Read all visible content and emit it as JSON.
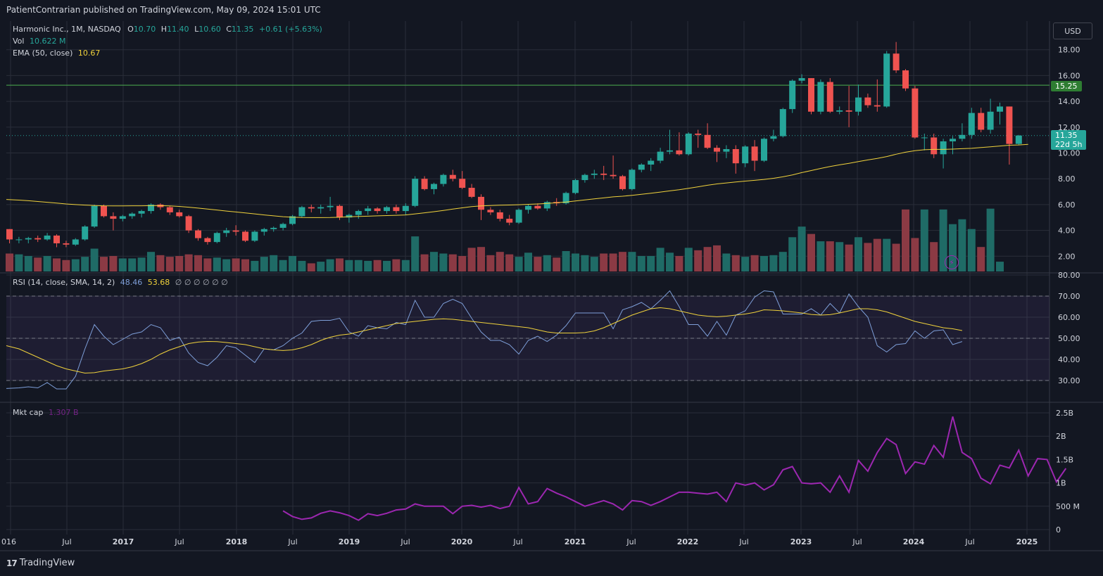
{
  "header": {
    "published": "PatientContrarian published on TradingView.com, May 09, 2024 15:01 UTC"
  },
  "legend": {
    "symbol": "Harmonic Inc., 1M, NASDAQ",
    "o_label": "O",
    "o_value": "10.70",
    "h_label": "H",
    "h_value": "11.40",
    "l_label": "L",
    "l_value": "10.60",
    "c_label": "C",
    "c_value": "11.35",
    "change": "+0.61 (+5.63%)",
    "vol_label": "Vol",
    "vol_value": "10.622 M",
    "ema_label": "EMA (50, close)",
    "ema_value": "10.67",
    "rsi_label": "RSI (14, close, SMA, 14, 2)",
    "rsi_value": "48.46",
    "rsi_sma_value": "53.68",
    "rsi_extra": "∅ ∅ ∅ ∅ ∅ ∅",
    "mktcap_label": "Mkt cap",
    "mktcap_value": "1.307 B"
  },
  "toolbar": {
    "currency": "USD"
  },
  "price_tags": {
    "level": "15.25",
    "last": "11.35",
    "countdown": "22d 5h"
  },
  "footer": {
    "brand": "TradingView",
    "brand_mark": "17"
  },
  "colors": {
    "background": "#131722",
    "up": "#26a69a",
    "down": "#ef5350",
    "vol_up": "#1f6b66",
    "vol_down": "#8b3a44",
    "ema": "#f0d23c",
    "rsi": "#7e9fd9",
    "rsi_sma": "#f0d23c",
    "mktcap": "#9c27b0",
    "level_line": "#4caf50",
    "grid": "#2a2e39"
  },
  "chart_data": {
    "type": "candlestick",
    "interval": "1M",
    "first_period": "2015-12",
    "price_axis": {
      "min": 0.6,
      "max": 19.4,
      "ticks": [
        "2.00",
        "4.00",
        "6.00",
        "8.00",
        "10.00",
        "12.00",
        "14.00",
        "16.00",
        "18.00"
      ]
    },
    "x_ticks": [
      "016",
      "Jul",
      "2017",
      "Jul",
      "2018",
      "Jul",
      "2019",
      "Jul",
      "2020",
      "Jul",
      "2021",
      "Jul",
      "2022",
      "Jul",
      "2023",
      "Jul",
      "2024",
      "Jul",
      "2025"
    ],
    "horizontal_level": 15.25,
    "candles": [
      [
        4.1,
        4.1,
        3.0,
        3.3
      ],
      [
        3.3,
        3.5,
        3.0,
        3.3
      ],
      [
        3.3,
        3.5,
        3.0,
        3.4
      ],
      [
        3.4,
        3.6,
        3.1,
        3.3
      ],
      [
        3.3,
        3.8,
        3.2,
        3.6
      ],
      [
        3.6,
        3.7,
        2.7,
        3.0
      ],
      [
        3.0,
        3.2,
        2.7,
        2.9
      ],
      [
        2.9,
        3.4,
        2.8,
        3.3
      ],
      [
        3.3,
        4.4,
        3.2,
        4.3
      ],
      [
        4.3,
        6.0,
        4.2,
        5.9
      ],
      [
        5.9,
        6.0,
        5.0,
        5.1
      ],
      [
        5.1,
        5.4,
        4.0,
        4.9
      ],
      [
        4.9,
        5.2,
        4.7,
        5.1
      ],
      [
        5.1,
        5.4,
        4.9,
        5.3
      ],
      [
        5.3,
        5.6,
        5.0,
        5.5
      ],
      [
        5.5,
        6.1,
        5.3,
        6.0
      ],
      [
        6.0,
        6.1,
        5.6,
        5.8
      ],
      [
        5.8,
        5.9,
        5.2,
        5.4
      ],
      [
        5.4,
        5.6,
        5.0,
        5.1
      ],
      [
        5.1,
        5.2,
        3.8,
        4.0
      ],
      [
        4.0,
        4.1,
        3.2,
        3.4
      ],
      [
        3.4,
        3.5,
        2.9,
        3.1
      ],
      [
        3.1,
        3.9,
        3.0,
        3.8
      ],
      [
        3.8,
        4.2,
        3.5,
        4.0
      ],
      [
        4.0,
        4.4,
        3.6,
        3.9
      ],
      [
        3.9,
        4.0,
        3.1,
        3.2
      ],
      [
        3.2,
        4.0,
        3.1,
        3.9
      ],
      [
        3.9,
        4.2,
        3.6,
        4.1
      ],
      [
        4.1,
        4.3,
        3.9,
        4.2
      ],
      [
        4.2,
        4.6,
        4.0,
        4.5
      ],
      [
        4.5,
        5.2,
        4.4,
        5.1
      ],
      [
        5.1,
        5.9,
        5.0,
        5.8
      ],
      [
        5.8,
        6.0,
        5.4,
        5.7
      ],
      [
        5.7,
        6.0,
        5.3,
        5.8
      ],
      [
        5.8,
        6.6,
        5.5,
        5.9
      ],
      [
        5.9,
        6.0,
        4.8,
        5.0
      ],
      [
        5.0,
        5.3,
        4.6,
        5.2
      ],
      [
        5.2,
        5.6,
        4.9,
        5.5
      ],
      [
        5.5,
        5.9,
        5.2,
        5.7
      ],
      [
        5.7,
        5.8,
        5.3,
        5.5
      ],
      [
        5.5,
        5.9,
        5.3,
        5.8
      ],
      [
        5.8,
        6.0,
        5.3,
        5.5
      ],
      [
        5.5,
        6.1,
        5.2,
        5.9
      ],
      [
        5.9,
        8.2,
        5.8,
        8.0
      ],
      [
        8.0,
        8.2,
        7.1,
        7.2
      ],
      [
        7.2,
        7.7,
        6.8,
        7.6
      ],
      [
        7.6,
        8.4,
        7.4,
        8.3
      ],
      [
        8.3,
        8.7,
        7.8,
        8.0
      ],
      [
        8.0,
        8.6,
        7.2,
        7.3
      ],
      [
        7.3,
        7.6,
        6.5,
        6.6
      ],
      [
        6.6,
        6.8,
        4.8,
        5.6
      ],
      [
        5.6,
        5.8,
        5.2,
        5.4
      ],
      [
        5.4,
        5.6,
        4.7,
        4.9
      ],
      [
        4.9,
        5.2,
        4.4,
        4.6
      ],
      [
        4.6,
        5.7,
        4.5,
        5.6
      ],
      [
        5.6,
        6.0,
        5.3,
        5.9
      ],
      [
        5.9,
        6.1,
        5.6,
        5.7
      ],
      [
        5.7,
        6.3,
        5.5,
        6.2
      ],
      [
        6.2,
        6.5,
        5.9,
        6.1
      ],
      [
        6.1,
        7.0,
        6.0,
        6.9
      ],
      [
        6.9,
        8.0,
        6.8,
        7.9
      ],
      [
        7.9,
        8.4,
        7.7,
        8.3
      ],
      [
        8.3,
        8.7,
        8.0,
        8.4
      ],
      [
        8.4,
        9.0,
        7.9,
        8.3
      ],
      [
        8.3,
        9.8,
        8.0,
        8.2
      ],
      [
        8.2,
        8.3,
        7.1,
        7.2
      ],
      [
        7.2,
        8.8,
        7.1,
        8.7
      ],
      [
        8.7,
        9.2,
        8.5,
        9.1
      ],
      [
        9.1,
        9.6,
        8.6,
        9.4
      ],
      [
        9.4,
        10.4,
        9.2,
        10.1
      ],
      [
        10.1,
        11.8,
        9.9,
        10.2
      ],
      [
        10.2,
        11.6,
        9.8,
        9.9
      ],
      [
        9.9,
        11.6,
        9.8,
        11.5
      ],
      [
        11.5,
        11.8,
        10.4,
        11.4
      ],
      [
        11.4,
        12.3,
        10.3,
        10.4
      ],
      [
        10.4,
        10.6,
        9.3,
        10.1
      ],
      [
        10.1,
        10.6,
        9.6,
        10.3
      ],
      [
        10.3,
        10.6,
        8.4,
        9.2
      ],
      [
        9.2,
        10.6,
        8.9,
        10.5
      ],
      [
        10.5,
        11.0,
        8.6,
        9.4
      ],
      [
        9.4,
        11.2,
        9.3,
        11.1
      ],
      [
        11.1,
        11.8,
        10.9,
        11.3
      ],
      [
        11.3,
        13.5,
        11.2,
        13.4
      ],
      [
        13.4,
        15.7,
        13.1,
        15.6
      ],
      [
        15.6,
        16.1,
        15.4,
        15.8
      ],
      [
        15.8,
        15.8,
        13.0,
        13.2
      ],
      [
        13.2,
        15.7,
        13.0,
        15.5
      ],
      [
        15.5,
        15.8,
        13.1,
        13.2
      ],
      [
        13.2,
        13.6,
        13.0,
        13.3
      ],
      [
        13.3,
        15.2,
        12.0,
        13.2
      ],
      [
        13.2,
        15.3,
        12.9,
        14.3
      ],
      [
        14.3,
        14.6,
        13.5,
        13.7
      ],
      [
        13.7,
        15.7,
        13.2,
        13.6
      ],
      [
        13.6,
        17.9,
        13.5,
        17.7
      ],
      [
        17.7,
        18.6,
        16.2,
        16.4
      ],
      [
        16.4,
        16.5,
        14.8,
        15.0
      ],
      [
        15.0,
        15.2,
        11.1,
        11.2
      ],
      [
        11.2,
        11.5,
        10.2,
        11.2
      ],
      [
        11.2,
        11.5,
        9.6,
        9.9
      ],
      [
        9.9,
        11.1,
        8.8,
        10.9
      ],
      [
        10.9,
        11.3,
        9.9,
        11.1
      ],
      [
        11.1,
        12.3,
        10.9,
        11.4
      ],
      [
        11.4,
        13.5,
        11.1,
        13.1
      ],
      [
        13.1,
        13.5,
        11.6,
        11.8
      ],
      [
        11.8,
        14.2,
        11.5,
        13.2
      ],
      [
        13.2,
        13.9,
        12.2,
        13.6
      ],
      [
        13.6,
        13.6,
        9.1,
        10.7
      ],
      [
        10.7,
        11.4,
        10.6,
        11.35
      ]
    ],
    "ema50": [
      6.4,
      6.35,
      6.3,
      6.24,
      6.18,
      6.12,
      6.05,
      6.0,
      5.96,
      5.93,
      5.91,
      5.9,
      5.9,
      5.91,
      5.91,
      5.92,
      5.92,
      5.9,
      5.86,
      5.8,
      5.73,
      5.65,
      5.58,
      5.5,
      5.43,
      5.35,
      5.28,
      5.2,
      5.13,
      5.06,
      5.02,
      5.0,
      4.99,
      4.99,
      5.0,
      5.02,
      5.05,
      5.08,
      5.1,
      5.13,
      5.15,
      5.17,
      5.2,
      5.28,
      5.36,
      5.45,
      5.55,
      5.65,
      5.75,
      5.85,
      5.9,
      5.93,
      5.95,
      5.97,
      5.99,
      6.02,
      6.05,
      6.09,
      6.14,
      6.2,
      6.28,
      6.36,
      6.44,
      6.52,
      6.6,
      6.65,
      6.72,
      6.8,
      6.88,
      6.97,
      7.06,
      7.15,
      7.26,
      7.38,
      7.5,
      7.6,
      7.68,
      7.75,
      7.82,
      7.88,
      7.95,
      8.04,
      8.15,
      8.3,
      8.48,
      8.64,
      8.8,
      8.95,
      9.08,
      9.2,
      9.33,
      9.46,
      9.58,
      9.72,
      9.9,
      10.06,
      10.18,
      10.25,
      10.28,
      10.28,
      10.3,
      10.33,
      10.36,
      10.42,
      10.48,
      10.54,
      10.6,
      10.62,
      10.67
    ],
    "volume": [
      2.2,
      2.1,
      1.9,
      1.7,
      1.9,
      1.6,
      1.4,
      1.5,
      1.8,
      2.8,
      1.8,
      1.9,
      1.6,
      1.6,
      1.7,
      2.4,
      2.0,
      1.8,
      1.9,
      2.1,
      2.0,
      1.6,
      1.7,
      1.5,
      1.6,
      1.5,
      1.3,
      1.8,
      2.0,
      1.4,
      1.9,
      1.3,
      1.0,
      1.2,
      1.5,
      1.6,
      1.4,
      1.4,
      1.3,
      1.4,
      1.3,
      1.5,
      1.4,
      4.3,
      2.1,
      2.4,
      2.2,
      2.1,
      1.9,
      2.9,
      3.0,
      2.0,
      2.4,
      2.1,
      1.8,
      2.3,
      1.8,
      2.0,
      1.7,
      2.5,
      2.2,
      2.0,
      1.8,
      2.2,
      2.2,
      2.4,
      2.4,
      1.9,
      1.9,
      2.9,
      2.3,
      1.9,
      2.9,
      2.6,
      3.0,
      3.2,
      2.2,
      2.0,
      1.8,
      2.0,
      1.9,
      2.0,
      2.4,
      4.2,
      5.5,
      4.6,
      3.7,
      3.7,
      3.6,
      3.3,
      4.2,
      3.5,
      4.0,
      4.0,
      3.4,
      7.6,
      4.1,
      7.6,
      3.6,
      7.6,
      5.8,
      6.4,
      5.2,
      3.0,
      7.7,
      1.2
    ],
    "rsi": [
      26.2,
      26.5,
      27,
      26.5,
      29,
      26,
      26,
      32,
      45,
      56.5,
      51,
      47,
      49.5,
      52,
      53,
      56.5,
      55,
      49,
      50.5,
      43,
      38.5,
      37,
      41,
      46.5,
      45.5,
      42,
      38.5,
      45,
      44.5,
      46.5,
      50,
      52.5,
      58,
      58.5,
      58.5,
      59.5,
      53,
      51,
      56,
      55,
      54.5,
      57.5,
      56.5,
      68,
      60,
      60,
      66.5,
      68.5,
      66.5,
      59.5,
      53,
      49,
      49,
      47,
      42.5,
      49,
      51,
      48.5,
      51.5,
      56,
      62,
      62,
      62,
      62,
      54.5,
      63.5,
      65,
      67,
      64,
      68,
      72.5,
      65,
      56.5,
      56.5,
      51,
      58,
      51.5,
      61,
      63,
      69.5,
      72.5,
      72,
      61.5,
      61.5,
      61.5,
      64,
      61,
      66.5,
      62,
      71,
      65,
      60,
      46.5,
      43.5,
      47,
      47.5,
      53.5,
      50,
      53.5,
      54,
      47,
      48.46
    ],
    "rsi_sma": [
      46.5,
      45,
      43,
      41,
      39,
      37,
      35.5,
      34.5,
      33.5,
      33.7,
      34.5,
      35,
      35.5,
      36.5,
      38,
      40,
      42.5,
      44.5,
      46,
      47.5,
      48.2,
      48.5,
      48.4,
      48,
      47.5,
      47,
      46,
      45,
      44.5,
      44.2,
      44.5,
      45.5,
      47,
      49,
      50.5,
      51.5,
      52,
      53,
      54,
      55,
      56,
      57,
      57.5,
      58,
      58.5,
      59,
      59.2,
      59,
      58.5,
      58,
      57.5,
      57,
      56.5,
      56,
      55.5,
      55,
      54,
      53,
      52.5,
      52.5,
      52.5,
      52.7,
      53.5,
      55,
      57,
      59,
      61,
      62.5,
      64,
      64.5,
      64,
      63,
      62,
      61,
      60.5,
      60.2,
      60.5,
      61,
      61.5,
      62.3,
      63.5,
      63.3,
      63,
      62.5,
      62,
      61.3,
      61,
      61.2,
      62,
      63,
      64,
      64,
      63.5,
      62.5,
      61,
      59.5,
      58,
      57,
      56,
      55,
      54.5,
      53.68
    ],
    "mktcap_axis": {
      "min": 0,
      "max": 2.5,
      "ticks": [
        "0",
        "500 M",
        "1B",
        "1.5B",
        "2B",
        "2.5B"
      ]
    },
    "mktcap_start_index": 29,
    "mktcap": [
      0.4,
      0.28,
      0.22,
      0.25,
      0.35,
      0.4,
      0.36,
      0.3,
      0.2,
      0.34,
      0.3,
      0.35,
      0.42,
      0.44,
      0.55,
      0.5,
      0.5,
      0.5,
      0.34,
      0.5,
      0.52,
      0.48,
      0.52,
      0.45,
      0.5,
      0.9,
      0.55,
      0.6,
      0.88,
      0.78,
      0.7,
      0.6,
      0.5,
      0.56,
      0.62,
      0.55,
      0.42,
      0.62,
      0.6,
      0.52,
      0.6,
      0.7,
      0.8,
      0.8,
      0.78,
      0.76,
      0.8,
      0.6,
      1.0,
      0.95,
      1.0,
      0.85,
      0.96,
      1.28,
      1.35,
      1.0,
      0.98,
      1.0,
      0.8,
      1.15,
      0.8,
      1.48,
      1.25,
      1.65,
      1.95,
      1.82,
      1.2,
      1.45,
      1.4,
      1.8,
      1.55,
      2.42,
      1.65,
      1.52,
      1.1,
      0.98,
      1.38,
      1.32,
      1.7,
      1.15,
      1.52,
      1.5,
      1.02,
      1.31
    ]
  }
}
